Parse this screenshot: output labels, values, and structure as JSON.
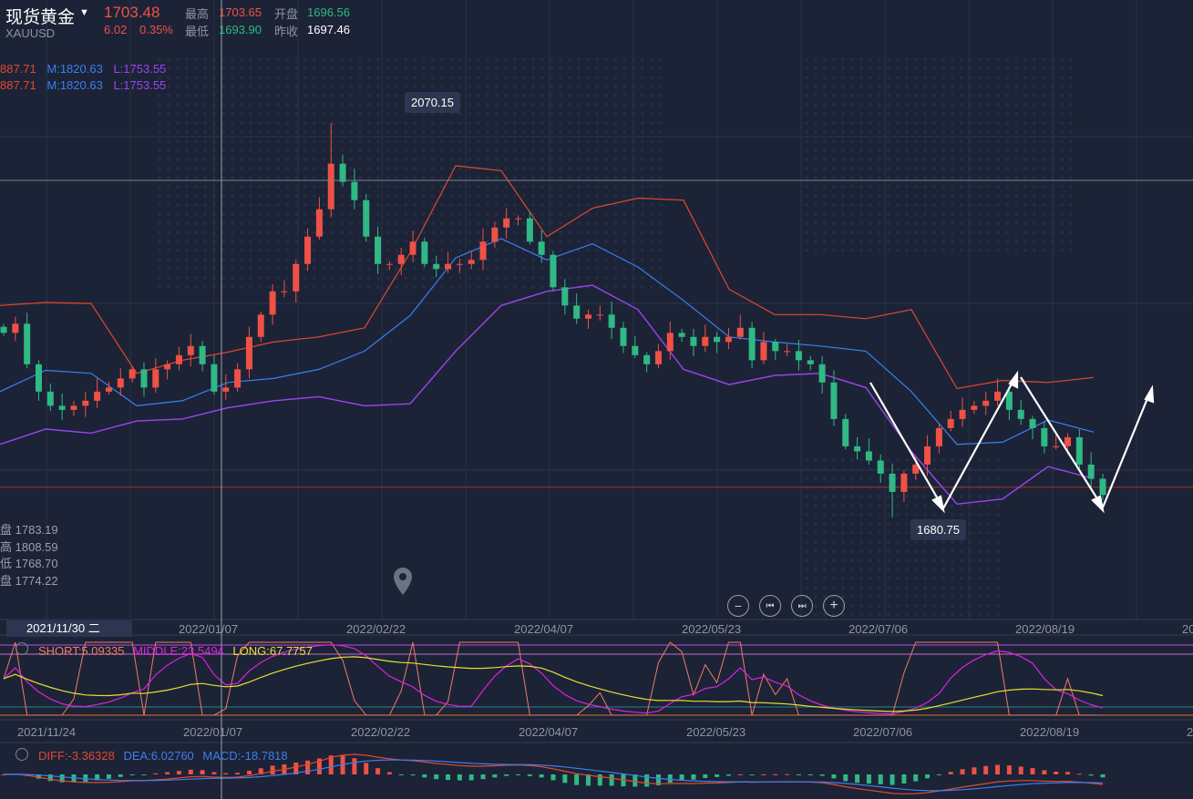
{
  "header": {
    "title": "现货黄金",
    "symbol": "XAUUSD",
    "price": "1703.48",
    "change": "6.02",
    "change_pct": "0.35%",
    "high_label": "最高",
    "high": "1703.65",
    "open_label": "开盘",
    "open": "1696.56",
    "low_label": "最低",
    "low": "1693.90",
    "prev_close_label": "昨收",
    "prev_close": "1697.46"
  },
  "boll_legend": [
    {
      "u": "887.71",
      "m": "M:1820.63",
      "l": "L:1753.55"
    },
    {
      "u": "887.71",
      "m": "M:1820.63",
      "l": "L:1753.55"
    }
  ],
  "crosshair_info": [
    {
      "label": "盘",
      "value": "1783.19"
    },
    {
      "label": "高",
      "value": "1808.59"
    },
    {
      "label": "低",
      "value": "1768.70"
    },
    {
      "label": "盘",
      "value": "1774.22"
    }
  ],
  "nav_buttons": {
    "zoom_out": "−",
    "prev": "⏮",
    "next": "⏭",
    "zoom_in": "+"
  },
  "main_axis": {
    "selected_date": "2021/11/30 二",
    "ticks": [
      "2022/01/07",
      "2022/02/22",
      "2022/04/07",
      "2022/05/23",
      "2022/07/06",
      "2022/08/19",
      "20"
    ]
  },
  "sub_axis": {
    "ticks": [
      "2021/11/24",
      "2022/01/07",
      "2022/02/22",
      "2022/04/07",
      "2022/05/23",
      "2022/07/06",
      "2022/08/19",
      "20"
    ]
  },
  "indicator1": {
    "short": "SHORT:5.09335",
    "middle": "MIDDLE:23.5494",
    "long": "LONG:67.7757"
  },
  "macd": {
    "diff": "DIFF:-3.36328",
    "dea": "DEA:6.02760",
    "macd": "MACD:-18.7818"
  },
  "colors": {
    "up": "#ef5146",
    "down": "#2fb985",
    "upper": "#e0492f",
    "mid": "#3d7ef0",
    "lower": "#9a45f0",
    "short": "#f07a6a",
    "middle": "#e020e0",
    "long": "#e8e030",
    "bg": "#1c2336"
  },
  "chart_data": {
    "type": "candlestick",
    "title": "现货黄金 XAUUSD",
    "max_label": "2070.15",
    "min_label": "1680.75",
    "closes": [
      1863,
      1872,
      1832,
      1805,
      1791,
      1787,
      1791,
      1796,
      1805,
      1809,
      1818,
      1827,
      1809,
      1827,
      1832,
      1841,
      1850,
      1832,
      1805,
      1809,
      1827,
      1859,
      1881,
      1904,
      1904,
      1931,
      1958,
      1985,
      2030,
      2012,
      1994,
      1958,
      1931,
      1931,
      1940,
      1953,
      1931,
      1926,
      1931,
      1931,
      1935,
      1953,
      1967,
      1976,
      1976,
      1953,
      1940,
      1908,
      1890,
      1877,
      1881,
      1881,
      1868,
      1850,
      1841,
      1832,
      1845,
      1863,
      1859,
      1850,
      1859,
      1854,
      1859,
      1868,
      1836,
      1854,
      1845,
      1845,
      1836,
      1832,
      1814,
      1778,
      1751,
      1746,
      1737,
      1724,
      1706,
      1724,
      1733,
      1751,
      1769,
      1778,
      1787,
      1791,
      1796,
      1805,
      1787,
      1778,
      1769,
      1751,
      1751,
      1760,
      1733,
      1719,
      1703
    ],
    "peak_index": 28,
    "peak": 2070.15,
    "trough_index": 76,
    "trough": 1680.75,
    "boll_upper": [
      1890,
      1893,
      1892,
      1823,
      1836,
      1844,
      1854,
      1859,
      1868,
      1942,
      2028,
      2023,
      1958,
      1986,
      1996,
      1994,
      1906,
      1881,
      1881,
      1877,
      1886,
      1808,
      1816,
      1814,
      1819
    ],
    "boll_mid": [
      1805,
      1826,
      1823,
      1791,
      1796,
      1814,
      1818,
      1827,
      1845,
      1880,
      1937,
      1956,
      1935,
      1951,
      1928,
      1895,
      1859,
      1854,
      1850,
      1845,
      1805,
      1753,
      1755,
      1777,
      1765
    ],
    "boll_lower": [
      1753,
      1768,
      1764,
      1776,
      1778,
      1789,
      1796,
      1800,
      1791,
      1793,
      1845,
      1890,
      1904,
      1910,
      1886,
      1827,
      1812,
      1821,
      1823,
      1809,
      1746,
      1694,
      1699,
      1731,
      1719
    ],
    "current_price": 1703.48
  }
}
